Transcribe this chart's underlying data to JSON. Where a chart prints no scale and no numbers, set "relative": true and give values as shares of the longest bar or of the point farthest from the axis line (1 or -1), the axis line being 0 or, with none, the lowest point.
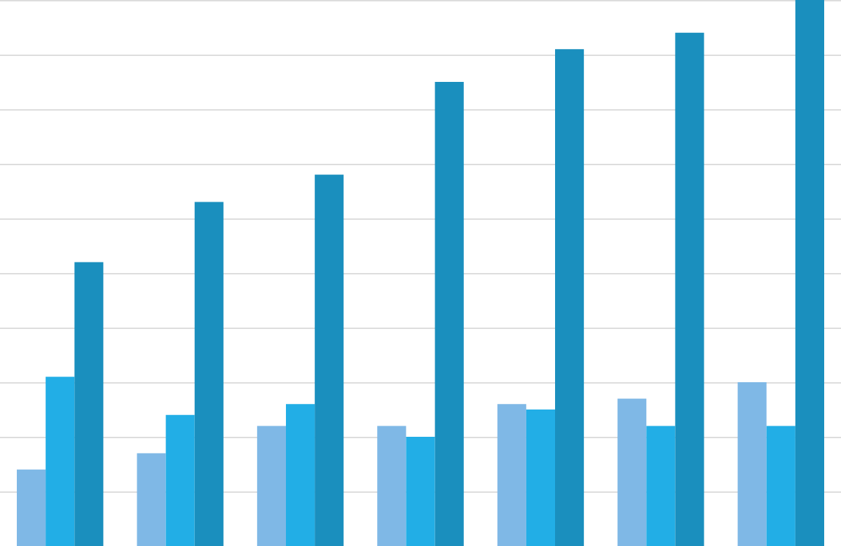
{
  "chart_data": {
    "type": "bar",
    "relative": true,
    "grid": true,
    "categories": [
      null,
      null,
      null,
      null,
      null,
      null,
      null
    ],
    "series": [
      {
        "color": "#7fb8e6",
        "values": [
          0.14,
          0.17,
          0.22,
          0.22,
          0.26,
          0.27,
          0.3
        ]
      },
      {
        "color": "#22aee6",
        "values": [
          0.31,
          0.24,
          0.26,
          0.2,
          0.25,
          0.22,
          0.22
        ]
      },
      {
        "color": "#1a8fbe",
        "values": [
          0.52,
          0.63,
          0.68,
          0.85,
          0.91,
          0.94,
          1
        ]
      }
    ]
  }
}
